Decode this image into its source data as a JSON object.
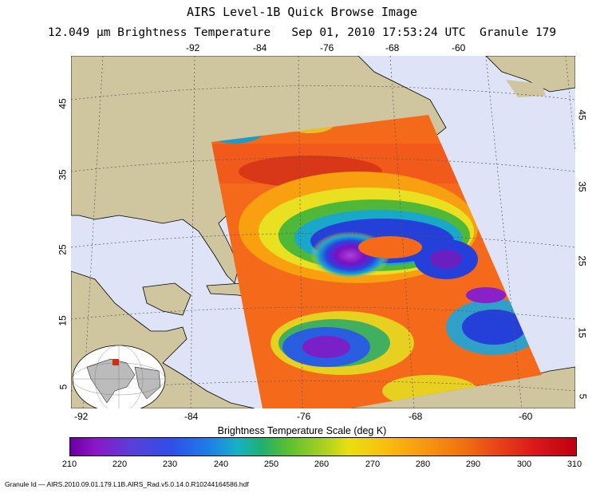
{
  "title": "AIRS Level-1B Quick Browse Image",
  "subtitle": "12.049 μm Brightness Temperature   Sep 01, 2010 17:53:24 UTC  Granule 179",
  "map": {
    "longitude_ticks_top": [
      "-92",
      "-84",
      "-76",
      "-68",
      "-60"
    ],
    "longitude_ticks_bottom": [
      "-92",
      "-84",
      "-76",
      "-68",
      "-60"
    ],
    "latitude_ticks_left": [
      "45",
      "35",
      "25",
      "15",
      "5"
    ],
    "latitude_ticks_right": [
      "45",
      "35",
      "25",
      "15",
      "5"
    ],
    "colors": {
      "ocean": "#dfe3f7",
      "land": "#cfc69f",
      "swath_base": "#f46a1a",
      "cold_core": "#8a18c8",
      "grid": "#555555"
    },
    "inset": "globe-inset"
  },
  "colorbar": {
    "title": "Brightness Temperature Scale (deg K)",
    "ticks": [
      "210",
      "220",
      "230",
      "240",
      "250",
      "260",
      "270",
      "280",
      "290",
      "300",
      "310"
    ],
    "min": 210,
    "max": 310
  },
  "granule_id": "Granule Id — AIRS.2010.09.01.179.L1B.AIRS_Rad.v5.0.14.0.R10244164586.hdf"
}
